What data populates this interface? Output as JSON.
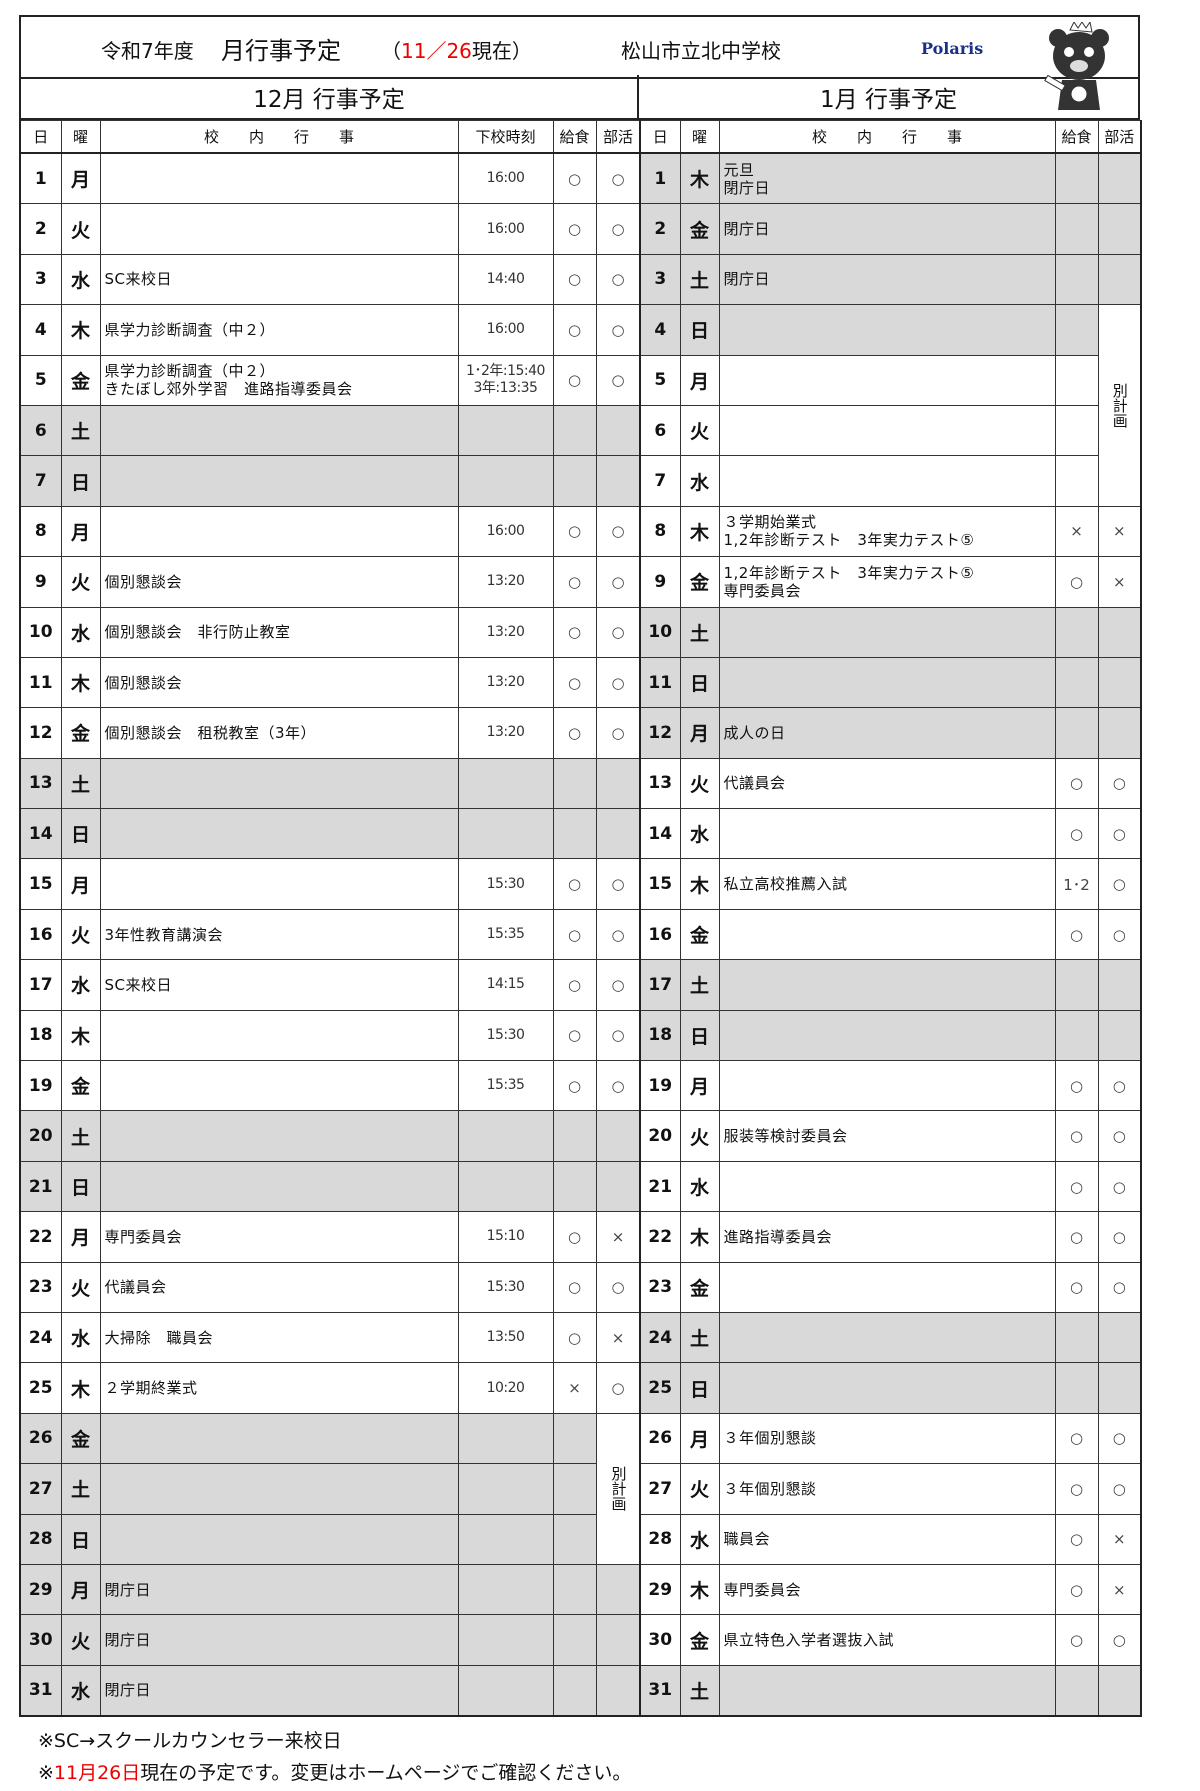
{
  "header": {
    "fiscal_year": "令和7年度",
    "title": "月行事予定",
    "as_of_open": "（",
    "as_of_date": "11／26",
    "as_of_close": "現在）",
    "school": "松山市立北中学校",
    "logo_text": "Polaris"
  },
  "months": {
    "dec_title": "12月  行事予定",
    "jan_title": "1月  行事予定"
  },
  "columns": {
    "day": "日",
    "dow": "曜",
    "events": "校　　内　　行　　事",
    "dismissal": "下校時刻",
    "lunch": "給食",
    "club": "部活"
  },
  "colors": {
    "weekend_fill": "#d9d9d9",
    "accent_red": "#e00000",
    "logo_blue": "#1a2f8a"
  },
  "december": {
    "club_merged": {
      "start": 26,
      "end": 28,
      "label": "別計画"
    },
    "days": [
      {
        "d": "1",
        "w": "月",
        "ev": "",
        "t": "16:00",
        "l": "○",
        "c": "○",
        "gray": false
      },
      {
        "d": "2",
        "w": "火",
        "ev": "",
        "t": "16:00",
        "l": "○",
        "c": "○",
        "gray": false
      },
      {
        "d": "3",
        "w": "水",
        "ev": "SC来校日",
        "t": "14:40",
        "l": "○",
        "c": "○",
        "gray": false
      },
      {
        "d": "4",
        "w": "木",
        "ev": "県学力診断調査（中２）",
        "t": "16:00",
        "l": "○",
        "c": "○",
        "gray": false
      },
      {
        "d": "5",
        "w": "金",
        "ev": "県学力診断調査（中２）\nきたぼし郊外学習　進路指導委員会",
        "t": "1･2年:15:40\n3年:13:35",
        "l": "○",
        "c": "○",
        "gray": false
      },
      {
        "d": "6",
        "w": "土",
        "ev": "",
        "t": "",
        "l": "",
        "c": "",
        "gray": true
      },
      {
        "d": "7",
        "w": "日",
        "ev": "",
        "t": "",
        "l": "",
        "c": "",
        "gray": true
      },
      {
        "d": "8",
        "w": "月",
        "ev": "",
        "t": "16:00",
        "l": "○",
        "c": "○",
        "gray": false
      },
      {
        "d": "9",
        "w": "火",
        "ev": "個別懇談会",
        "t": "13:20",
        "l": "○",
        "c": "○",
        "gray": false
      },
      {
        "d": "10",
        "w": "水",
        "ev": "個別懇談会　非行防止教室",
        "t": "13:20",
        "l": "○",
        "c": "○",
        "gray": false
      },
      {
        "d": "11",
        "w": "木",
        "ev": "個別懇談会",
        "t": "13:20",
        "l": "○",
        "c": "○",
        "gray": false
      },
      {
        "d": "12",
        "w": "金",
        "ev": "個別懇談会　租税教室（3年）",
        "t": "13:20",
        "l": "○",
        "c": "○",
        "gray": false
      },
      {
        "d": "13",
        "w": "土",
        "ev": "",
        "t": "",
        "l": "",
        "c": "",
        "gray": true
      },
      {
        "d": "14",
        "w": "日",
        "ev": "",
        "t": "",
        "l": "",
        "c": "",
        "gray": true
      },
      {
        "d": "15",
        "w": "月",
        "ev": "",
        "t": "15:30",
        "l": "○",
        "c": "○",
        "gray": false
      },
      {
        "d": "16",
        "w": "火",
        "ev": "3年性教育講演会",
        "t": "15:35",
        "l": "○",
        "c": "○",
        "gray": false
      },
      {
        "d": "17",
        "w": "水",
        "ev": "SC来校日",
        "t": "14:15",
        "l": "○",
        "c": "○",
        "gray": false
      },
      {
        "d": "18",
        "w": "木",
        "ev": "",
        "t": "15:30",
        "l": "○",
        "c": "○",
        "gray": false
      },
      {
        "d": "19",
        "w": "金",
        "ev": "",
        "t": "15:35",
        "l": "○",
        "c": "○",
        "gray": false
      },
      {
        "d": "20",
        "w": "土",
        "ev": "",
        "t": "",
        "l": "",
        "c": "",
        "gray": true
      },
      {
        "d": "21",
        "w": "日",
        "ev": "",
        "t": "",
        "l": "",
        "c": "",
        "gray": true
      },
      {
        "d": "22",
        "w": "月",
        "ev": "専門委員会",
        "t": "15:10",
        "l": "○",
        "c": "×",
        "gray": false
      },
      {
        "d": "23",
        "w": "火",
        "ev": "代議員会",
        "t": "15:30",
        "l": "○",
        "c": "○",
        "gray": false
      },
      {
        "d": "24",
        "w": "水",
        "ev": "大掃除　職員会",
        "t": "13:50",
        "l": "○",
        "c": "×",
        "gray": false
      },
      {
        "d": "25",
        "w": "木",
        "ev": "２学期終業式",
        "t": "10:20",
        "l": "×",
        "c": "○",
        "gray": false
      },
      {
        "d": "26",
        "w": "金",
        "ev": "",
        "t": "",
        "l": "",
        "c": "",
        "gray": true
      },
      {
        "d": "27",
        "w": "土",
        "ev": "",
        "t": "",
        "l": "",
        "c": "",
        "gray": true
      },
      {
        "d": "28",
        "w": "日",
        "ev": "",
        "t": "",
        "l": "",
        "c": "",
        "gray": true
      },
      {
        "d": "29",
        "w": "月",
        "ev": "閉庁日",
        "t": "",
        "l": "",
        "c": "",
        "gray": true
      },
      {
        "d": "30",
        "w": "火",
        "ev": "閉庁日",
        "t": "",
        "l": "",
        "c": "",
        "gray": true
      },
      {
        "d": "31",
        "w": "水",
        "ev": "閉庁日",
        "t": "",
        "l": "",
        "c": "",
        "gray": true
      }
    ]
  },
  "january": {
    "club_merged": {
      "start": 4,
      "end": 7,
      "label": "別計画"
    },
    "lunch_slashed_days": [
      5,
      6,
      7
    ],
    "days": [
      {
        "d": "1",
        "w": "木",
        "ev": "元旦\n閉庁日",
        "l": "",
        "c": "",
        "gray": true
      },
      {
        "d": "2",
        "w": "金",
        "ev": "閉庁日",
        "l": "",
        "c": "",
        "gray": true
      },
      {
        "d": "3",
        "w": "土",
        "ev": "閉庁日",
        "l": "",
        "c": "",
        "gray": true
      },
      {
        "d": "4",
        "w": "日",
        "ev": "",
        "l": "",
        "c": "",
        "gray": true
      },
      {
        "d": "5",
        "w": "月",
        "ev": "",
        "l": "",
        "c": "",
        "gray": false
      },
      {
        "d": "6",
        "w": "火",
        "ev": "",
        "l": "",
        "c": "",
        "gray": false
      },
      {
        "d": "7",
        "w": "水",
        "ev": "",
        "l": "",
        "c": "",
        "gray": false
      },
      {
        "d": "8",
        "w": "木",
        "ev": "３学期始業式\n1,2年診断テスト　3年実力テスト⑤",
        "l": "×",
        "c": "×",
        "gray": false
      },
      {
        "d": "9",
        "w": "金",
        "ev": "1,2年診断テスト　3年実力テスト⑤\n専門委員会",
        "l": "○",
        "c": "×",
        "gray": false
      },
      {
        "d": "10",
        "w": "土",
        "ev": "",
        "l": "",
        "c": "",
        "gray": true
      },
      {
        "d": "11",
        "w": "日",
        "ev": "",
        "l": "",
        "c": "",
        "gray": true
      },
      {
        "d": "12",
        "w": "月",
        "ev": "成人の日",
        "l": "",
        "c": "",
        "gray": true
      },
      {
        "d": "13",
        "w": "火",
        "ev": "代議員会",
        "l": "○",
        "c": "○",
        "gray": false
      },
      {
        "d": "14",
        "w": "水",
        "ev": "",
        "l": "○",
        "c": "○",
        "gray": false
      },
      {
        "d": "15",
        "w": "木",
        "ev": "私立高校推薦入試",
        "l": "1･2",
        "c": "○",
        "gray": false
      },
      {
        "d": "16",
        "w": "金",
        "ev": "",
        "l": "○",
        "c": "○",
        "gray": false
      },
      {
        "d": "17",
        "w": "土",
        "ev": "",
        "l": "",
        "c": "",
        "gray": true
      },
      {
        "d": "18",
        "w": "日",
        "ev": "",
        "l": "",
        "c": "",
        "gray": true
      },
      {
        "d": "19",
        "w": "月",
        "ev": "",
        "l": "○",
        "c": "○",
        "gray": false
      },
      {
        "d": "20",
        "w": "火",
        "ev": "服装等検討委員会",
        "l": "○",
        "c": "○",
        "gray": false
      },
      {
        "d": "21",
        "w": "水",
        "ev": "",
        "l": "○",
        "c": "○",
        "gray": false
      },
      {
        "d": "22",
        "w": "木",
        "ev": "進路指導委員会",
        "l": "○",
        "c": "○",
        "gray": false
      },
      {
        "d": "23",
        "w": "金",
        "ev": "",
        "l": "○",
        "c": "○",
        "gray": false
      },
      {
        "d": "24",
        "w": "土",
        "ev": "",
        "l": "",
        "c": "",
        "gray": true
      },
      {
        "d": "25",
        "w": "日",
        "ev": "",
        "l": "",
        "c": "",
        "gray": true
      },
      {
        "d": "26",
        "w": "月",
        "ev": "３年個別懇談",
        "l": "○",
        "c": "○",
        "gray": false
      },
      {
        "d": "27",
        "w": "火",
        "ev": "３年個別懇談",
        "l": "○",
        "c": "○",
        "gray": false
      },
      {
        "d": "28",
        "w": "水",
        "ev": "職員会",
        "l": "○",
        "c": "×",
        "gray": false
      },
      {
        "d": "29",
        "w": "木",
        "ev": "専門委員会",
        "l": "○",
        "c": "×",
        "gray": false
      },
      {
        "d": "30",
        "w": "金",
        "ev": "県立特色入学者選抜入試",
        "l": "○",
        "c": "○",
        "gray": false
      },
      {
        "d": "31",
        "w": "土",
        "ev": "",
        "l": "",
        "c": "",
        "gray": true
      }
    ]
  },
  "notes": {
    "sc_note": "※SC→スクールカウンセラー来校日",
    "prefix": "※",
    "date": "11月26日",
    "suffix": "現在の予定です。変更はホームページでご確認ください。"
  }
}
